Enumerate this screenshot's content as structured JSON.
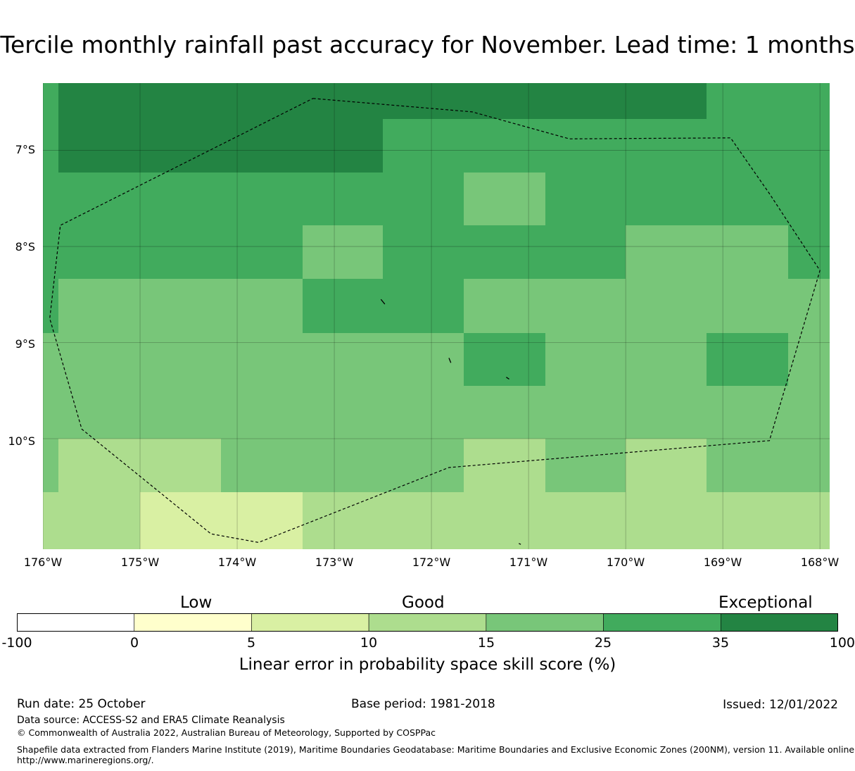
{
  "title": "Tercile monthly rainfall past accuracy for November. Lead time: 1 months",
  "map": {
    "lon_range": [
      -176.0,
      -167.9
    ],
    "lat_range": [
      -11.15,
      -6.3
    ],
    "lat_ticks": [
      {
        "value": -7,
        "label": "7°S"
      },
      {
        "value": -8,
        "label": "8°S"
      },
      {
        "value": -9,
        "label": "9°S"
      },
      {
        "value": -10,
        "label": "10°S"
      }
    ],
    "lon_ticks": [
      {
        "value": -176,
        "label": "176°W"
      },
      {
        "value": -175,
        "label": "175°W"
      },
      {
        "value": -174,
        "label": "174°W"
      },
      {
        "value": -173,
        "label": "173°W"
      },
      {
        "value": -172,
        "label": "172°W"
      },
      {
        "value": -171,
        "label": "171°W"
      },
      {
        "value": -170,
        "label": "170°W"
      },
      {
        "value": -169,
        "label": "169°W"
      },
      {
        "value": -168,
        "label": "168°W"
      }
    ],
    "grid_lon_edges": [
      -176.0,
      -175.84,
      -175.0,
      -174.17,
      -173.33,
      -172.5,
      -171.67,
      -170.83,
      -170.0,
      -169.17,
      -168.33,
      -167.9
    ],
    "grid_lat_edges": [
      -6.3,
      -6.67,
      -7.23,
      -7.78,
      -8.34,
      -8.9,
      -9.45,
      -10.0,
      -10.56,
      -11.15
    ],
    "cells": [
      [
        25,
        35,
        35,
        35,
        35,
        35,
        35,
        35,
        35,
        25,
        25
      ],
      [
        25,
        35,
        35,
        35,
        35,
        25,
        25,
        25,
        25,
        25,
        25
      ],
      [
        25,
        25,
        25,
        25,
        25,
        25,
        15,
        25,
        25,
        25,
        25
      ],
      [
        25,
        25,
        25,
        25,
        15,
        25,
        25,
        25,
        15,
        15,
        25
      ],
      [
        25,
        15,
        15,
        15,
        25,
        25,
        15,
        15,
        15,
        15,
        15
      ],
      [
        15,
        15,
        15,
        15,
        15,
        15,
        25,
        15,
        15,
        25,
        15
      ],
      [
        15,
        15,
        15,
        15,
        15,
        15,
        15,
        15,
        15,
        15,
        15
      ],
      [
        15,
        10,
        10,
        15,
        15,
        15,
        10,
        15,
        10,
        15,
        15
      ],
      [
        10,
        10,
        5,
        5,
        10,
        10,
        10,
        10,
        10,
        10,
        10
      ]
    ],
    "eez_boundary": [
      [
        -173.22,
        -6.46
      ],
      [
        -171.58,
        -6.6
      ],
      [
        -170.58,
        -6.88
      ],
      [
        -168.92,
        -6.87
      ],
      [
        -168.52,
        -7.45
      ],
      [
        -168.0,
        -8.25
      ],
      [
        -168.52,
        -10.02
      ],
      [
        -171.82,
        -10.3
      ],
      [
        -173.78,
        -11.08
      ],
      [
        -174.27,
        -10.99
      ],
      [
        -175.6,
        -9.9
      ],
      [
        -175.93,
        -8.75
      ],
      [
        -175.82,
        -7.78
      ],
      [
        -173.22,
        -6.46
      ]
    ],
    "islands": [
      [
        [
          -172.52,
          -8.55
        ],
        [
          -172.48,
          -8.6
        ]
      ],
      [
        [
          -171.82,
          -9.16
        ],
        [
          -171.8,
          -9.21
        ]
      ],
      [
        [
          -171.23,
          -9.36
        ],
        [
          -171.2,
          -9.38
        ]
      ],
      [
        [
          -171.1,
          -11.09
        ],
        [
          -171.08,
          -11.1
        ]
      ]
    ]
  },
  "colorbar": {
    "category_labels": [
      "Low",
      "Good",
      "Exceptional"
    ],
    "bins": [
      {
        "from": -100,
        "to": 0,
        "color": "#ffffff"
      },
      {
        "from": 0,
        "to": 5,
        "color": "#ffffcc"
      },
      {
        "from": 5,
        "to": 10,
        "color": "#d9f0a3"
      },
      {
        "from": 10,
        "to": 15,
        "color": "#addd8e"
      },
      {
        "from": 15,
        "to": 25,
        "color": "#78c679"
      },
      {
        "from": 25,
        "to": 35,
        "color": "#41ab5d"
      },
      {
        "from": 35,
        "to": 100,
        "color": "#238443"
      }
    ],
    "tick_labels": [
      "-100",
      "0",
      "5",
      "10",
      "15",
      "25",
      "35",
      "100"
    ],
    "title": "Linear error in probability space skill score (%)"
  },
  "footer": {
    "run_date": "Run date: 25 October",
    "base_period": "Base period: 1981-2018",
    "issued": "Issued: 12/01/2022",
    "data_source": "Data source: ACCESS-S2 and ERA5 Climate Reanalysis",
    "copyright": "© Commonwealth of Australia 2022, Australian Bureau of Meteorology, Supported by COSPPac",
    "shapefile_line1": "Shapefile data extracted from Flanders Marine Institute (2019), Maritime Boundaries Geodatabase: Maritime Boundaries and Exclusive Economic Zones (200NM), version 11. Available online at",
    "shapefile_line2": "http://www.marineregions.org/."
  }
}
